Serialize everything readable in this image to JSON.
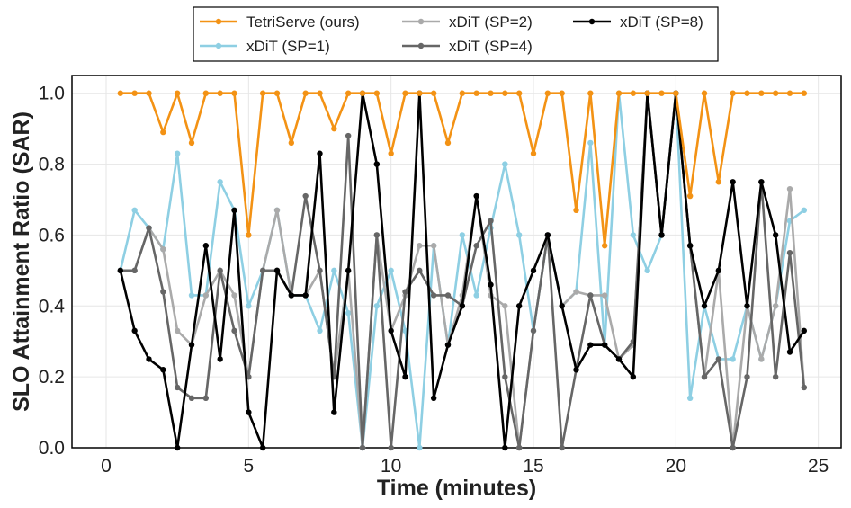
{
  "chart_data": {
    "type": "line",
    "xlabel": "Time (minutes)",
    "ylabel": "SLO Attainment Ratio (SAR)",
    "xlim": [
      -1.2,
      25.8
    ],
    "ylim": [
      0.0,
      1.05
    ],
    "xticks": [
      0,
      5,
      10,
      15,
      20,
      25
    ],
    "yticks": [
      0.0,
      0.2,
      0.4,
      0.6,
      0.8,
      1.0
    ],
    "ytick_labels": [
      "0.0",
      "0.2",
      "0.4",
      "0.6",
      "0.8",
      "1.0"
    ],
    "grid": true,
    "legend_position": "top-center, outside plot",
    "x": [
      0.5,
      1.0,
      1.5,
      2.0,
      2.5,
      3.0,
      3.5,
      4.0,
      4.5,
      5.0,
      5.5,
      6.0,
      6.5,
      7.0,
      7.5,
      8.0,
      8.5,
      9.0,
      9.5,
      10.0,
      10.5,
      11.0,
      11.5,
      12.0,
      12.5,
      13.0,
      13.5,
      14.0,
      14.5,
      15.0,
      15.5,
      16.0,
      16.5,
      17.0,
      17.5,
      18.0,
      18.5,
      19.0,
      19.5,
      20.0,
      20.5,
      21.0,
      21.5,
      22.0,
      22.5,
      23.0,
      23.5,
      24.0,
      24.5
    ],
    "series": [
      {
        "name": "TetriServe (ours)",
        "color": "#f39214",
        "values": [
          1.0,
          1.0,
          1.0,
          0.89,
          1.0,
          0.86,
          1.0,
          1.0,
          1.0,
          0.6,
          1.0,
          1.0,
          0.86,
          1.0,
          1.0,
          0.9,
          1.0,
          1.0,
          1.0,
          0.83,
          1.0,
          1.0,
          1.0,
          0.86,
          1.0,
          1.0,
          1.0,
          1.0,
          1.0,
          0.83,
          1.0,
          1.0,
          0.67,
          1.0,
          0.57,
          1.0,
          1.0,
          1.0,
          1.0,
          1.0,
          0.71,
          1.0,
          0.75,
          1.0,
          1.0,
          1.0,
          1.0,
          1.0,
          1.0
        ]
      },
      {
        "name": "xDiT (SP=1)",
        "color": "#8ecfe3",
        "values": [
          0.5,
          0.67,
          0.62,
          0.56,
          0.83,
          0.43,
          0.43,
          0.75,
          0.67,
          0.4,
          0.5,
          0.67,
          0.43,
          0.43,
          0.33,
          0.5,
          0.38,
          0.0,
          0.4,
          0.5,
          0.33,
          0.0,
          0.57,
          0.29,
          0.6,
          0.43,
          0.62,
          0.8,
          0.6,
          0.33,
          0.6,
          0.4,
          0.44,
          0.86,
          0.29,
          1.0,
          0.6,
          0.5,
          0.6,
          1.0,
          0.14,
          0.4,
          0.25,
          0.25,
          0.4,
          0.25,
          0.4,
          0.64,
          0.67
        ]
      },
      {
        "name": "xDiT (SP=2)",
        "color": "#aaaaaa",
        "values": [
          0.5,
          0.5,
          0.62,
          0.56,
          0.33,
          0.29,
          0.43,
          0.5,
          0.43,
          0.2,
          0.5,
          0.67,
          0.43,
          0.43,
          0.5,
          0.2,
          0.5,
          0.0,
          0.6,
          0.33,
          0.43,
          0.57,
          0.57,
          0.29,
          0.43,
          0.71,
          0.43,
          0.4,
          0.0,
          0.33,
          0.6,
          0.4,
          0.44,
          0.43,
          0.43,
          0.25,
          0.29,
          1.0,
          0.6,
          1.0,
          0.57,
          0.2,
          0.5,
          0.0,
          0.4,
          0.25,
          0.4,
          0.73,
          0.17
        ]
      },
      {
        "name": "xDiT (SP=4)",
        "color": "#666666",
        "values": [
          0.5,
          0.5,
          0.62,
          0.44,
          0.17,
          0.14,
          0.14,
          0.5,
          0.33,
          0.2,
          0.5,
          0.5,
          0.43,
          0.71,
          0.5,
          0.2,
          0.88,
          0.0,
          0.6,
          0.0,
          0.44,
          0.5,
          0.43,
          0.43,
          0.4,
          0.57,
          0.64,
          0.2,
          0.0,
          0.33,
          0.6,
          0.0,
          0.22,
          0.43,
          0.29,
          0.25,
          0.3,
          1.0,
          0.6,
          1.0,
          0.57,
          0.2,
          0.25,
          0.0,
          0.2,
          0.75,
          0.2,
          0.55,
          0.17
        ]
      },
      {
        "name": "xDiT (SP=8)",
        "color": "#000000",
        "values": [
          0.5,
          0.33,
          0.25,
          0.22,
          0.0,
          0.29,
          0.57,
          0.25,
          0.67,
          0.1,
          0.0,
          0.5,
          0.43,
          0.43,
          0.83,
          0.1,
          0.5,
          1.0,
          0.8,
          0.33,
          0.2,
          1.0,
          0.14,
          0.29,
          0.4,
          0.71,
          0.46,
          0.0,
          0.4,
          0.5,
          0.6,
          0.4,
          0.22,
          0.29,
          0.29,
          0.25,
          0.2,
          1.0,
          0.6,
          1.0,
          0.57,
          0.4,
          0.5,
          0.75,
          0.4,
          0.75,
          0.6,
          0.27,
          0.33
        ]
      }
    ]
  }
}
